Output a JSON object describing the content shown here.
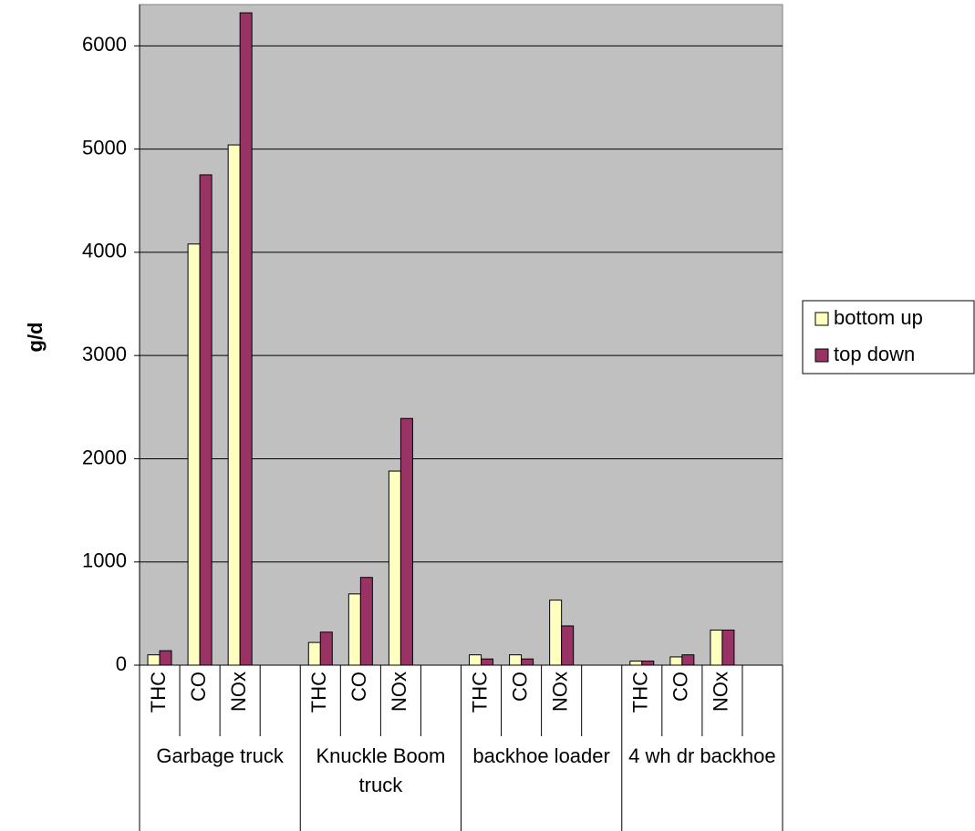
{
  "chart_data": {
    "type": "bar",
    "y_label": "g/d",
    "categories": [
      "THC",
      "CO",
      "NOx",
      null,
      "THC",
      "CO",
      "NOx",
      null,
      "THC",
      "CO",
      "NOx",
      null,
      "THC",
      "CO",
      "NOx",
      null
    ],
    "groups": [
      "Garbage truck",
      "Knuckle Boom truck",
      "backhoe loader",
      "4 wh dr backhoe"
    ],
    "series": [
      {
        "name": "bottom up",
        "color": "#ffffc0",
        "values": [
          100,
          4080,
          5040,
          null,
          220,
          690,
          1880,
          null,
          100,
          100,
          630,
          null,
          40,
          80,
          340,
          null
        ]
      },
      {
        "name": "top down",
        "color": "#993366",
        "values": [
          140,
          4750,
          6320,
          null,
          320,
          850,
          2390,
          null,
          60,
          60,
          380,
          null,
          40,
          100,
          340,
          null
        ]
      }
    ],
    "ylim": [
      0,
      6400
    ],
    "yticks": [
      0,
      1000,
      2000,
      3000,
      4000,
      5000,
      6000
    ],
    "grid": true,
    "plot_background": "#c0c0c0",
    "legend": "right"
  }
}
